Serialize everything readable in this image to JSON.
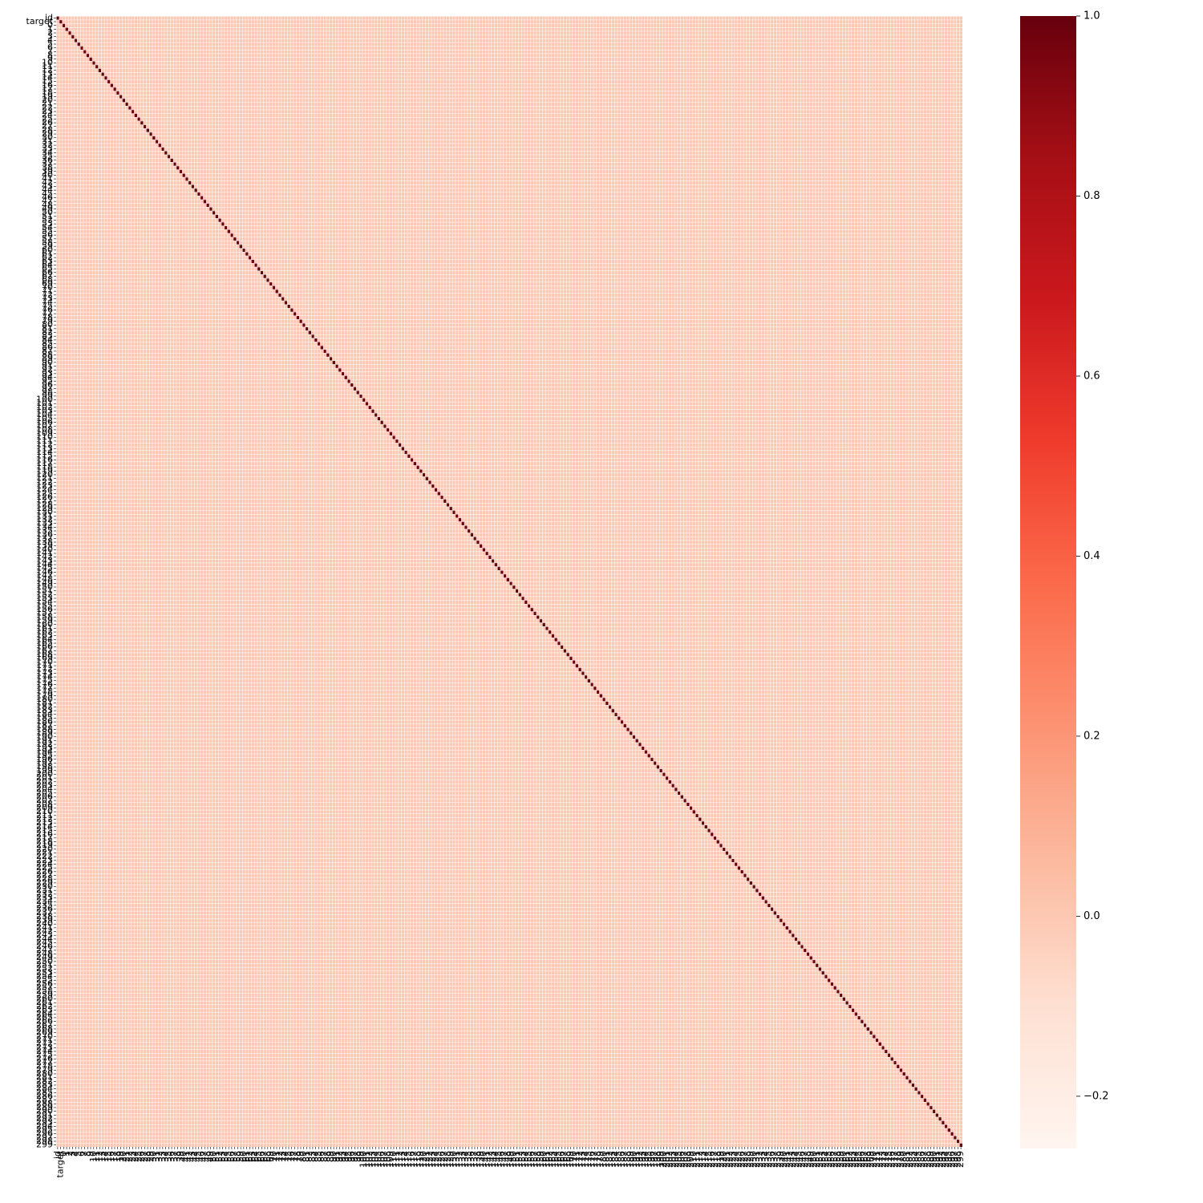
{
  "chart_data": {
    "type": "heatmap",
    "categories": [
      "id",
      "target",
      "0",
      "1",
      "2",
      "3",
      "4",
      "5",
      "6",
      "7",
      "8",
      "9",
      "10",
      "11",
      "12",
      "13",
      "14",
      "15",
      "16",
      "17",
      "18",
      "19",
      "20",
      "21",
      "22",
      "23",
      "24",
      "25",
      "26",
      "27",
      "28",
      "29",
      "30",
      "31",
      "32",
      "33",
      "34",
      "35",
      "36",
      "37",
      "38",
      "39",
      "40",
      "41",
      "42",
      "43",
      "44",
      "45",
      "46",
      "47",
      "48",
      "49",
      "50",
      "51",
      "52",
      "53",
      "54",
      "55",
      "56",
      "57",
      "58",
      "59",
      "60",
      "61",
      "62",
      "63",
      "64",
      "65",
      "66",
      "67",
      "68",
      "69",
      "70",
      "71",
      "72",
      "73",
      "74",
      "75",
      "76",
      "77",
      "78",
      "79",
      "80",
      "81",
      "82",
      "83",
      "84",
      "85",
      "86",
      "87",
      "88",
      "89",
      "90",
      "91",
      "92",
      "93",
      "94",
      "95",
      "96",
      "97",
      "98",
      "99",
      "100",
      "101",
      "102",
      "103",
      "104",
      "105",
      "106",
      "107",
      "108",
      "109",
      "110",
      "111",
      "112",
      "113",
      "114",
      "115",
      "116",
      "117",
      "118",
      "119",
      "120",
      "121",
      "122",
      "123",
      "124",
      "125",
      "126",
      "127",
      "128",
      "129",
      "130",
      "131",
      "132",
      "133",
      "134",
      "135",
      "136",
      "137",
      "138",
      "139",
      "140",
      "141",
      "142",
      "143",
      "144",
      "145",
      "146",
      "147",
      "148",
      "149",
      "150",
      "151",
      "152",
      "153",
      "154",
      "155",
      "156",
      "157",
      "158",
      "159",
      "160",
      "161",
      "162",
      "163",
      "164",
      "165",
      "166",
      "167",
      "168",
      "169",
      "170",
      "171",
      "172",
      "173",
      "174",
      "175",
      "176",
      "177",
      "178",
      "179",
      "180",
      "181",
      "182",
      "183",
      "184",
      "185",
      "186",
      "187",
      "188",
      "189",
      "190",
      "191",
      "192",
      "193",
      "194",
      "195",
      "196",
      "197",
      "198",
      "199",
      "200",
      "201",
      "202",
      "203",
      "204",
      "205",
      "206",
      "207",
      "208",
      "209",
      "210",
      "211",
      "212",
      "213",
      "214",
      "215",
      "216",
      "217",
      "218",
      "219",
      "220",
      "221",
      "222",
      "223",
      "224",
      "225",
      "226",
      "227",
      "228",
      "229",
      "230",
      "231",
      "232",
      "233",
      "234",
      "235",
      "236",
      "237",
      "238",
      "239",
      "240",
      "241",
      "242",
      "243",
      "244",
      "245",
      "246",
      "247",
      "248",
      "249",
      "250",
      "251",
      "252",
      "253",
      "254",
      "255",
      "256",
      "257",
      "258",
      "259",
      "260",
      "261",
      "262",
      "263",
      "264",
      "265",
      "266",
      "267",
      "268",
      "269",
      "270",
      "271",
      "272",
      "273",
      "274",
      "275",
      "276",
      "277",
      "278",
      "279",
      "280",
      "281",
      "282",
      "283",
      "284",
      "285",
      "286",
      "287",
      "288",
      "289",
      "290",
      "291",
      "292",
      "293",
      "294",
      "295",
      "296",
      "297",
      "298",
      "299"
    ],
    "diagonal_value": 1,
    "off_diagonal_value": 0,
    "zlim": [
      -0.258,
      1
    ],
    "zticks": [
      {
        "value": -0.2,
        "label": "−0.2"
      },
      {
        "value": 0,
        "label": "0.0"
      },
      {
        "value": 0.2,
        "label": "0.2"
      },
      {
        "value": 0.4,
        "label": "0.4"
      },
      {
        "value": 0.6,
        "label": "0.6"
      },
      {
        "value": 0.8,
        "label": "0.8"
      },
      {
        "value": 1,
        "label": "1.0"
      }
    ],
    "colorscale": [
      "#fff5f0",
      "#fee0d2",
      "#fcbba1",
      "#fc9272",
      "#fb6a4a",
      "#ef3b2c",
      "#cb181d",
      "#a50f15",
      "#67000d"
    ],
    "cell_lines": "#ffffff"
  }
}
